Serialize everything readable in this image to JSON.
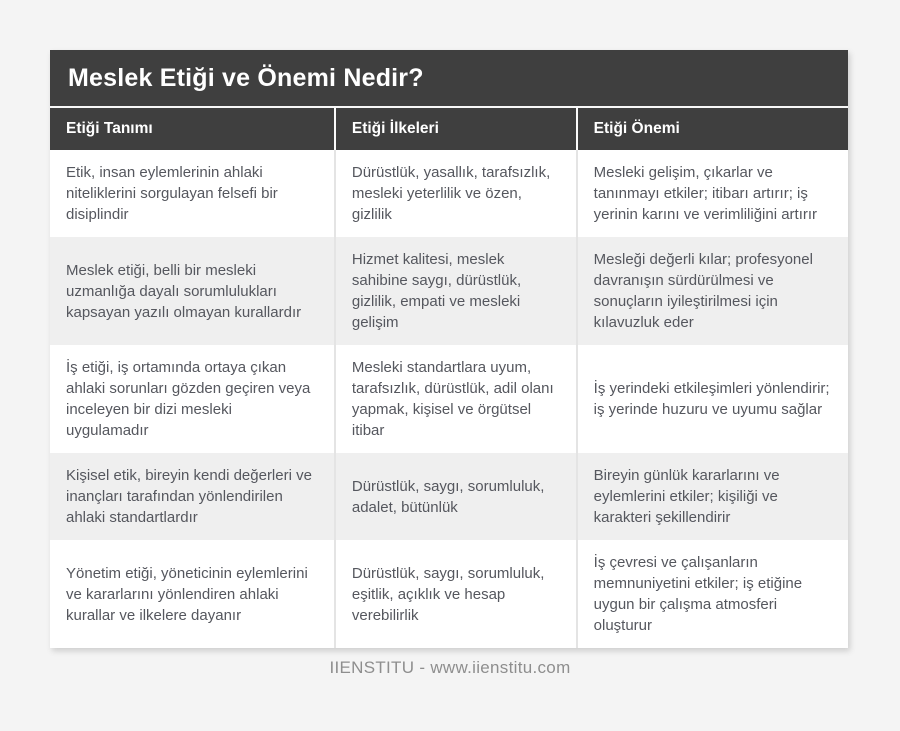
{
  "colors": {
    "page_bg": "#f4f4f4",
    "header_bg": "#3f3f3f",
    "header_text": "#ffffff",
    "row_bg": "#ffffff",
    "row_alt_bg": "#efefef",
    "cell_text": "#55575e",
    "footer_text": "#8e8e8e"
  },
  "chart_data": {
    "type": "table",
    "title": "Meslek Etiği ve Önemi Nedir?",
    "columns": [
      "Etiği Tanımı",
      "Etiği İlkeleri",
      "Etiği Önemi"
    ],
    "rows": [
      [
        "Etik, insan eylemlerinin ahlaki niteliklerini sorgulayan felsefi bir disiplindir",
        "Dürüstlük, yasallık, tarafsızlık, mesleki yeterlilik ve özen, gizlilik",
        "Mesleki gelişim, çıkarlar ve tanınmayı etkiler; itibarı artırır; iş yerinin karını ve verimliliğini artırır"
      ],
      [
        "Meslek etiği, belli bir mesleki uzmanlığa dayalı sorumlulukları kapsayan yazılı olmayan kurallardır",
        "Hizmet kalitesi, meslek sahibine saygı, dürüstlük, gizlilik, empati ve mesleki gelişim",
        "Mesleği değerli kılar; profesyonel davranışın sürdürülmesi ve sonuçların iyileştirilmesi için kılavuzluk eder"
      ],
      [
        "İş etiği, iş ortamında ortaya çıkan ahlaki sorunları gözden geçiren veya inceleyen bir dizi mesleki uygulamadır",
        "Mesleki standartlara uyum, tarafsızlık, dürüstlük, adil olanı yapmak, kişisel ve örgütsel itibar",
        "İş yerindeki etkileşimleri yönlendirir; iş yerinde huzuru ve uyumu sağlar"
      ],
      [
        "Kişisel etik, bireyin kendi değerleri ve inançları tarafından yönlendirilen ahlaki standartlardır",
        "Dürüstlük, saygı, sorumluluk, adalet, bütünlük",
        "Bireyin günlük kararlarını ve eylemlerini etkiler; kişiliği ve karakteri şekillendirir"
      ],
      [
        "Yönetim etiği, yöneticinin eylemlerini ve kararlarını yönlendiren ahlaki kurallar ve ilkelere dayanır",
        "Dürüstlük, saygı, sorumluluk, eşitlik, açıklık ve hesap verebilirlik",
        "İş çevresi ve çalışanların memnuniyetini etkiler; iş etiğine uygun bir çalışma atmosferi oluşturur"
      ]
    ]
  },
  "footer": {
    "text": "IIENSTITU - www.iienstitu.com"
  }
}
